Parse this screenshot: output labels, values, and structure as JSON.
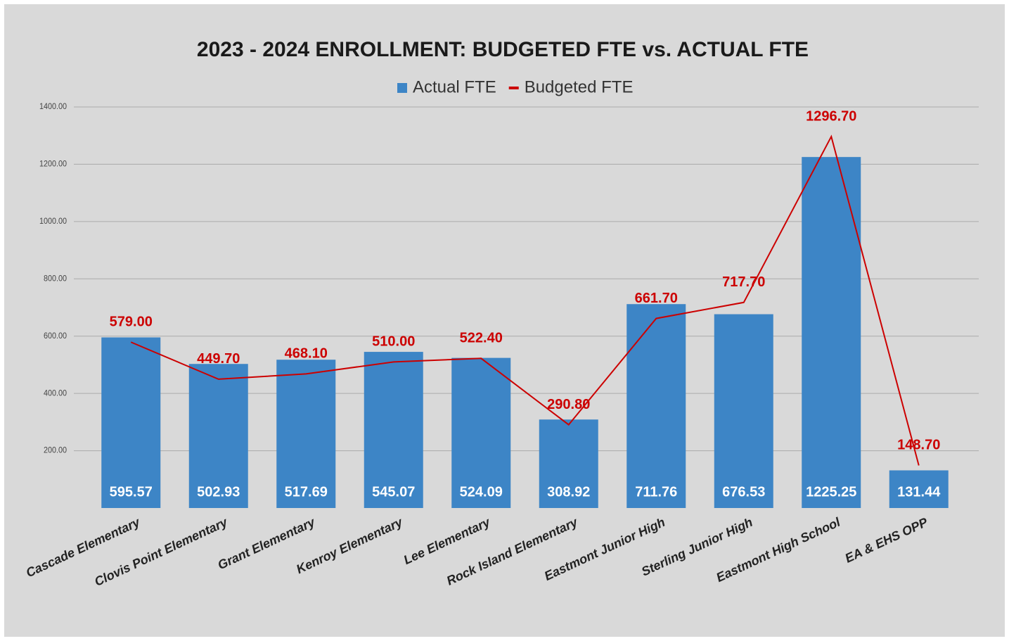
{
  "chart_data": {
    "type": "combo",
    "title": "2023 - 2024 ENROLLMENT: BUDGETED FTE vs. ACTUAL FTE",
    "categories": [
      "Cascade Elementary",
      "Clovis Point Elementary",
      "Grant Elementary",
      "Kenroy Elementary",
      "Lee Elementary",
      "Rock Island Elementary",
      "Eastmont Junior High",
      "Sterling Junior High",
      "Eastmont High School",
      "EA & EHS OPP"
    ],
    "series": [
      {
        "name": "Actual FTE",
        "type": "bar",
        "color": "#3d85c6",
        "values": [
          595.57,
          502.93,
          517.69,
          545.07,
          524.09,
          308.92,
          711.76,
          676.53,
          1225.25,
          131.44
        ]
      },
      {
        "name": "Budgeted FTE",
        "type": "line",
        "color": "#cc0000",
        "values": [
          579,
          449.7,
          468.1,
          510,
          522.4,
          290.8,
          661.7,
          717.7,
          1296.7,
          148.7
        ],
        "value_labels": [
          "579.00",
          "449.70",
          "468.10",
          "510.00",
          "522.40",
          "290.80",
          "661.70",
          "717.70",
          "1296.70",
          "148.70"
        ]
      }
    ],
    "ylim": [
      0,
      1400
    ],
    "yticks": [
      {
        "value": 200,
        "label": "200.00"
      },
      {
        "value": 400,
        "label": "400.00"
      },
      {
        "value": 600,
        "label": "600.00"
      },
      {
        "value": 800,
        "label": "800.00"
      },
      {
        "value": 1000,
        "label": "1000.00"
      },
      {
        "value": 1200,
        "label": "1200.00"
      },
      {
        "value": 1400,
        "label": "1400.00"
      }
    ],
    "grid": true,
    "legend": "top"
  }
}
